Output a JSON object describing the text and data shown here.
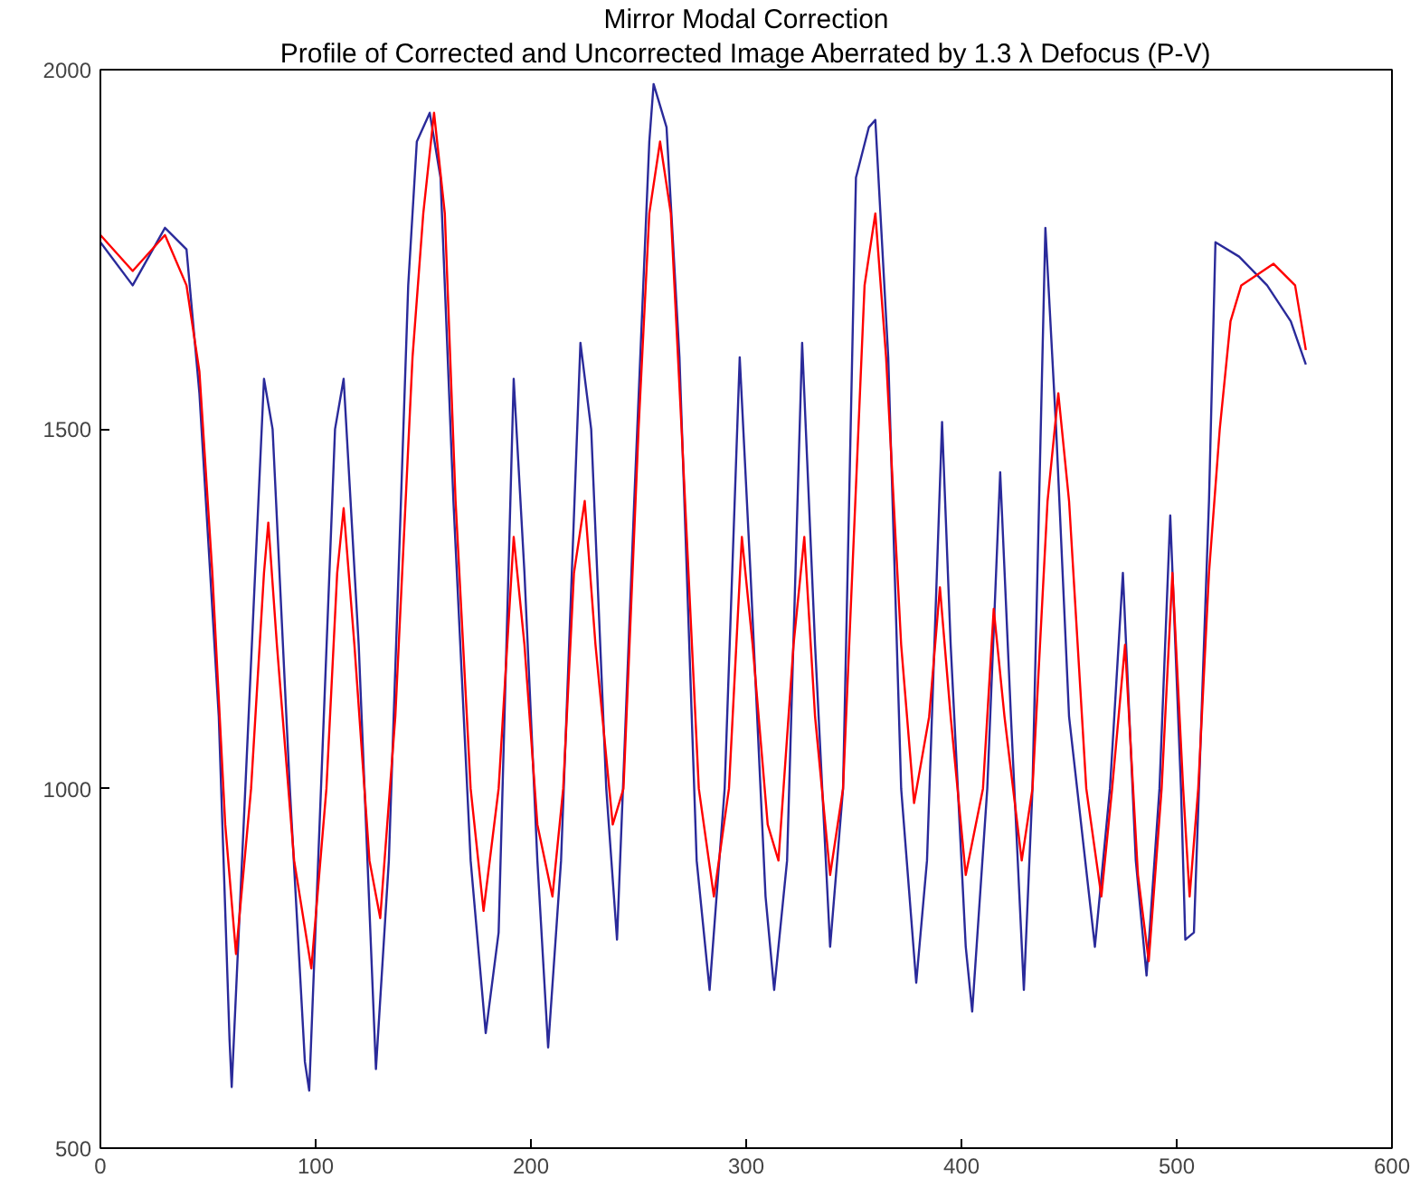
{
  "chart_data": {
    "type": "line",
    "title": "Mirror Modal Correction",
    "subtitle": "Profile of Corrected and Uncorrected Image Aberrated by 1.3 λ Defocus (P-V)",
    "xlim": [
      0,
      600
    ],
    "ylim": [
      500,
      2000
    ],
    "xticks": [
      0,
      100,
      200,
      300,
      400,
      500,
      600
    ],
    "yticks": [
      500,
      1000,
      1500,
      2000
    ],
    "grid": false,
    "line_style": "solid",
    "series": [
      {
        "color": "#2a2a9a",
        "x": [
          0,
          15,
          30,
          40,
          46,
          55,
          60,
          61,
          76,
          80,
          88,
          95,
          97,
          109,
          113,
          120,
          128,
          134,
          143,
          147,
          153,
          158,
          164,
          172,
          179,
          185,
          192,
          197,
          203,
          208,
          214,
          223,
          228,
          235,
          240,
          248,
          255,
          257,
          263,
          269,
          277,
          283,
          290,
          297,
          302,
          309,
          313,
          319,
          326,
          332,
          339,
          345,
          351,
          357,
          360,
          366,
          372,
          379,
          384,
          391,
          395,
          402,
          405,
          412,
          418,
          423,
          429,
          433,
          439,
          444,
          450,
          462,
          469,
          475,
          481,
          486,
          492,
          497,
          502,
          504,
          508,
          515,
          518,
          529,
          542,
          553,
          560
        ],
        "values": [
          1760,
          1700,
          1780,
          1750,
          1550,
          1100,
          650,
          585,
          1570,
          1500,
          1000,
          620,
          580,
          1500,
          1570,
          1200,
          610,
          900,
          1700,
          1900,
          1940,
          1850,
          1400,
          900,
          660,
          800,
          1570,
          1300,
          900,
          640,
          900,
          1620,
          1500,
          1000,
          790,
          1400,
          1900,
          1980,
          1920,
          1600,
          900,
          720,
          1000,
          1600,
          1300,
          850,
          720,
          900,
          1620,
          1200,
          780,
          1000,
          1850,
          1920,
          1930,
          1600,
          1000,
          730,
          900,
          1510,
          1200,
          780,
          690,
          1000,
          1440,
          1100,
          720,
          1000,
          1780,
          1500,
          1100,
          780,
          1000,
          1300,
          900,
          740,
          1000,
          1380,
          1000,
          790,
          800,
          1400,
          1760,
          1740,
          1700,
          1650,
          1590
        ]
      },
      {
        "color": "#ff0000",
        "x": [
          0,
          15,
          30,
          40,
          46,
          52,
          58,
          63,
          70,
          76,
          78,
          82,
          90,
          98,
          105,
          110,
          113,
          118,
          125,
          130,
          137,
          145,
          150,
          155,
          160,
          165,
          172,
          178,
          185,
          192,
          197,
          203,
          210,
          215,
          220,
          225,
          230,
          238,
          243,
          250,
          255,
          260,
          265,
          270,
          278,
          285,
          292,
          298,
          303,
          310,
          315,
          322,
          327,
          332,
          339,
          345,
          350,
          355,
          360,
          365,
          372,
          378,
          385,
          390,
          395,
          402,
          410,
          415,
          420,
          428,
          433,
          440,
          445,
          450,
          458,
          465,
          470,
          476,
          482,
          487,
          493,
          498,
          503,
          506,
          510,
          515,
          520,
          525,
          530,
          545,
          555,
          560
        ],
        "values": [
          1770,
          1720,
          1770,
          1700,
          1580,
          1300,
          950,
          770,
          1000,
          1300,
          1370,
          1200,
          900,
          750,
          1000,
          1300,
          1390,
          1200,
          900,
          820,
          1100,
          1600,
          1800,
          1940,
          1800,
          1400,
          1000,
          830,
          1000,
          1350,
          1200,
          950,
          850,
          1000,
          1300,
          1400,
          1200,
          950,
          1000,
          1500,
          1800,
          1900,
          1800,
          1500,
          1000,
          850,
          1000,
          1350,
          1200,
          950,
          900,
          1200,
          1350,
          1100,
          880,
          1000,
          1350,
          1700,
          1800,
          1600,
          1200,
          980,
          1100,
          1280,
          1100,
          880,
          1000,
          1250,
          1100,
          900,
          1000,
          1400,
          1550,
          1400,
          1000,
          850,
          1000,
          1200,
          880,
          760,
          1000,
          1300,
          1000,
          850,
          1000,
          1300,
          1500,
          1650,
          1700,
          1730,
          1700,
          1610
        ]
      }
    ]
  }
}
